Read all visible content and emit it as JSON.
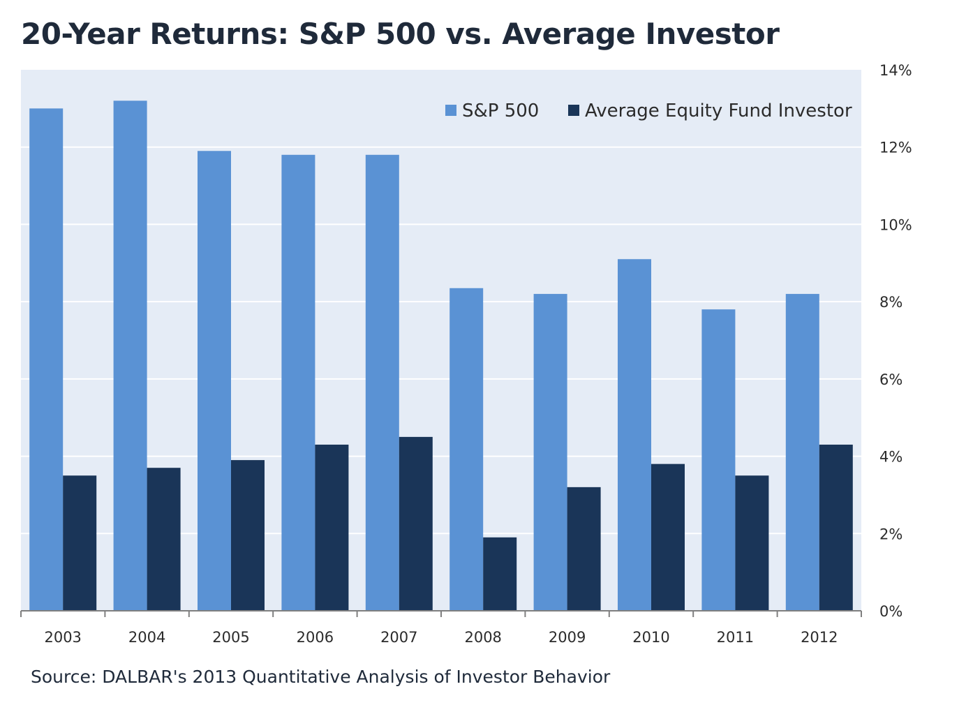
{
  "chart_data": {
    "type": "bar",
    "title": "20-Year Returns: S&P 500 vs. Average Investor",
    "xlabel": "",
    "ylabel": "",
    "categories": [
      "2003",
      "2004",
      "2005",
      "2006",
      "2007",
      "2008",
      "2009",
      "2010",
      "2011",
      "2012"
    ],
    "series": [
      {
        "name": "S&P 500",
        "color": "#5a92d4",
        "values": [
          13.0,
          13.2,
          11.9,
          11.8,
          11.8,
          8.35,
          8.2,
          9.1,
          7.8,
          8.2
        ]
      },
      {
        "name": "Average Equity Fund Investor",
        "color": "#1a3558",
        "values": [
          3.5,
          3.7,
          3.9,
          4.3,
          4.5,
          1.9,
          3.2,
          3.8,
          3.5,
          4.3
        ]
      }
    ],
    "ylim": [
      0,
      14
    ],
    "yticks": [
      "0%",
      "2%",
      "4%",
      "6%",
      "8%",
      "10%",
      "12%",
      "14%"
    ],
    "ytick_values": [
      0,
      2,
      4,
      6,
      8,
      10,
      12,
      14
    ],
    "y_axis_side": "right",
    "grid": true,
    "legend_position": "top-right",
    "plot_background": "#e5ecf6",
    "source": "Source: DALBAR's 2013  Quantitative Analysis of Investor Behavior"
  }
}
